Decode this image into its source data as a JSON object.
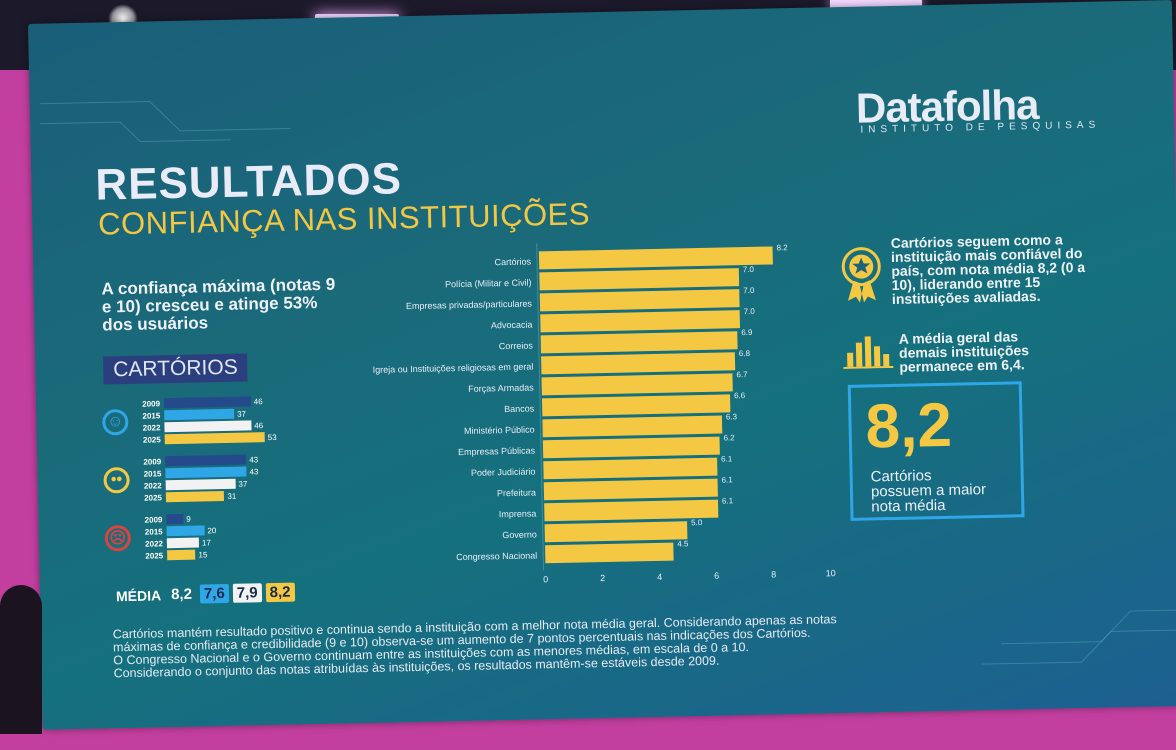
{
  "brand": {
    "name": "Datafolha",
    "sub": "INSTITUTO DE PESQUISAS"
  },
  "title": "RESULTADOS",
  "subtitle": "CONFIANÇA NAS INSTITUIÇÕES",
  "lead": "A confiança máxima (notas 9 e 10) cresceu e atinge 53% dos usuários",
  "section_label": "CARTÓRIOS",
  "face_icons": [
    "happy-face-icon",
    "neutral-face-icon",
    "sad-face-icon"
  ],
  "colors": {
    "accent_yellow": "#f4c842",
    "blue_2015": "#2fa6e6",
    "white_2022": "#f2f2f2",
    "yellow_2025": "#f4c842"
  },
  "media": {
    "label": "MÉDIA",
    "values": [
      "8,2",
      "7,6",
      "7,9",
      "8,2"
    ]
  },
  "highlight1": "Cartórios seguem como a instituição mais confiável do país, com nota média 8,2 (0 a 10), liderando entre 15 instituições avaliadas.",
  "highlight2": "A média geral das demais instituições permanece em 6,4.",
  "big_number": "8,2",
  "big_caption": [
    "Cartórios",
    "possuem a maior",
    "nota média"
  ],
  "footer": [
    "Cartórios mantém resultado positivo e continua sendo a instituição com a melhor nota média geral. Considerando apenas as notas",
    "máximas de confiança e credibilidade (9 e 10) observa-se um aumento de 7 pontos percentuais nas indicações dos Cartórios.",
    "O Congresso Nacional e o Governo continuam entre as instituições com as menores médias, em escala de 0 a 10.",
    "Considerando o conjunto das notas atribuídas às instituições, os resultados mantêm-se estáveis desde 2009."
  ],
  "chart_data": [
    {
      "type": "bar",
      "orientation": "horizontal",
      "categories": [
        "Cartórios",
        "Polícia (Militar e Civil)",
        "Empresas privadas/particulares",
        "Advocacia",
        "Correios",
        "Igreja ou Instituições religiosas em geral",
        "Forças Armadas",
        "Bancos",
        "Ministério Público",
        "Empresas Públicas",
        "Poder Judiciário",
        "Prefeitura",
        "Imprensa",
        "Governo",
        "Congresso Nacional"
      ],
      "values": [
        8.2,
        7.0,
        7.0,
        7.0,
        6.9,
        6.8,
        6.7,
        6.6,
        6.3,
        6.2,
        6.1,
        6.1,
        6.1,
        5.0,
        4.5
      ],
      "value_labels": [
        "8.2",
        "7.0",
        "7.0",
        "7.0",
        "6.9",
        "6.8",
        "6.7",
        "6.6",
        "6.3",
        "6.2",
        "6.1",
        "6.1",
        "6.1",
        "5.0",
        "4.5"
      ],
      "xlim": [
        0,
        10
      ],
      "xticks": [
        "0",
        "2",
        "4",
        "6",
        "8",
        "10"
      ],
      "color": "#f4c842",
      "grid": false,
      "title": "",
      "xlabel": "",
      "ylabel": ""
    },
    {
      "type": "bar",
      "orientation": "horizontal",
      "groups": [
        "happy-face-icon",
        "neutral-face-icon",
        "sad-face-icon"
      ],
      "categories": [
        "2009",
        "2015",
        "2022",
        "2025"
      ],
      "series": [
        {
          "values": [
            46,
            37,
            46,
            53
          ]
        },
        {
          "values": [
            43,
            43,
            37,
            31
          ]
        },
        {
          "values": [
            9,
            20,
            17,
            15
          ]
        }
      ],
      "bar_colors": [
        "#244a8c",
        "#2fa6e6",
        "#f2f2f2",
        "#f4c842"
      ]
    }
  ]
}
